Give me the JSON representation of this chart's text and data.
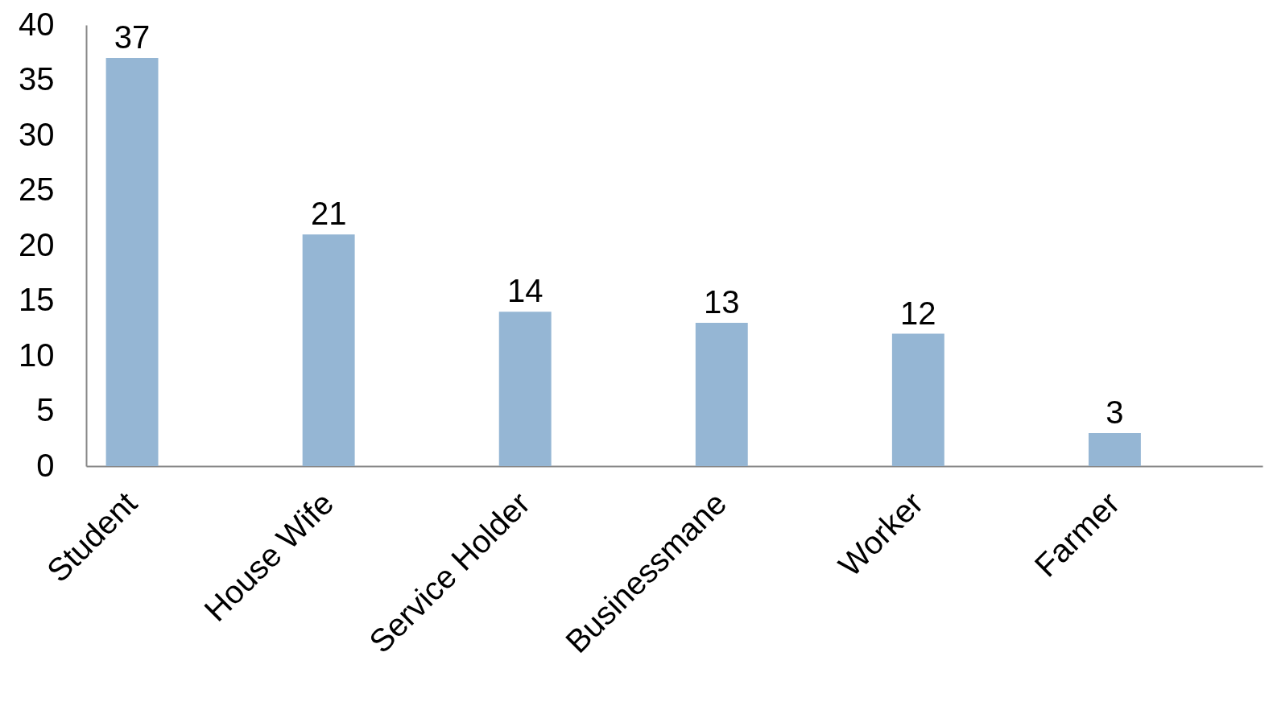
{
  "chart_data": {
    "type": "bar",
    "categories": [
      "Student",
      "House Wife",
      "Service Holder",
      "Businessmane",
      "Worker",
      "Farmer"
    ],
    "values": [
      37,
      21,
      14,
      13,
      12,
      3
    ],
    "color": "#95b6d4",
    "ylim": [
      0,
      40
    ],
    "yticks": [
      0,
      5,
      10,
      15,
      20,
      25,
      30,
      35,
      40
    ],
    "grid": false,
    "data_labels": true
  }
}
